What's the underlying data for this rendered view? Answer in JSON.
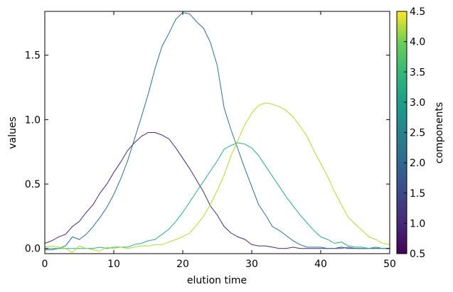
{
  "chart_data": {
    "type": "line",
    "xlabel": "elution time",
    "ylabel": "values",
    "xlim": [
      0,
      50
    ],
    "ylim": [
      -0.04,
      1.84
    ],
    "xticks": [
      0,
      10,
      20,
      30,
      40,
      50
    ],
    "xtick_labels": [
      "0",
      "10",
      "20",
      "30",
      "40",
      "50"
    ],
    "yticks": [
      0.0,
      0.5,
      1.0,
      1.5
    ],
    "ytick_labels": [
      "0.0",
      "0.5",
      "1.0",
      "1.5"
    ],
    "grid": false,
    "colorbar": {
      "label": "components",
      "range": [
        0.5,
        4.5
      ],
      "ticks": [
        0.5,
        1.0,
        1.5,
        2.0,
        2.5,
        3.0,
        3.5,
        4.0,
        4.5
      ],
      "tick_labels": [
        "0.5",
        "1.0",
        "1.5",
        "2.0",
        "2.5",
        "3.0",
        "3.5",
        "4.0",
        "4.5"
      ],
      "colormap": "viridis"
    },
    "x": [
      0,
      1,
      2,
      3,
      4,
      5,
      6,
      7,
      8,
      9,
      10,
      11,
      12,
      13,
      14,
      15,
      16,
      17,
      18,
      19,
      20,
      21,
      22,
      23,
      24,
      25,
      26,
      27,
      28,
      29,
      30,
      31,
      32,
      33,
      34,
      35,
      36,
      37,
      38,
      39,
      40,
      41,
      42,
      43,
      44,
      45,
      46,
      47,
      48,
      49,
      50
    ],
    "series": [
      {
        "component": 1,
        "color": "#482878",
        "values": [
          0.04,
          0.06,
          0.09,
          0.11,
          0.17,
          0.21,
          0.28,
          0.34,
          0.43,
          0.5,
          0.59,
          0.67,
          0.76,
          0.82,
          0.87,
          0.9,
          0.9,
          0.88,
          0.85,
          0.78,
          0.7,
          0.62,
          0.53,
          0.44,
          0.33,
          0.26,
          0.17,
          0.12,
          0.09,
          0.07,
          0.03,
          0.02,
          0.02,
          0.01,
          0.0,
          0.0,
          0.01,
          0.0,
          0.0,
          0.0,
          0.0,
          0.0,
          0.0,
          0.01,
          0.0,
          0.0,
          0.0,
          0.0,
          0.0,
          0.0,
          0.0
        ]
      },
      {
        "component": 2,
        "color": "#2c728e",
        "values": [
          -0.01,
          -0.01,
          0.0,
          0.02,
          0.09,
          0.07,
          0.11,
          0.17,
          0.24,
          0.32,
          0.42,
          0.54,
          0.68,
          0.85,
          1.02,
          1.2,
          1.4,
          1.57,
          1.67,
          1.78,
          1.83,
          1.82,
          1.76,
          1.71,
          1.6,
          1.42,
          1.09,
          0.92,
          0.77,
          0.62,
          0.48,
          0.34,
          0.26,
          0.17,
          0.14,
          0.1,
          0.06,
          0.03,
          0.01,
          0.01,
          0.01,
          0.0,
          0.0,
          0.0,
          0.01,
          0.0,
          0.0,
          0.0,
          0.01,
          0.0,
          0.0
        ]
      },
      {
        "component": 3,
        "color": "#27ad81",
        "values": [
          0.0,
          0.0,
          0.0,
          0.0,
          0.0,
          0.0,
          0.0,
          0.0,
          0.01,
          0.0,
          0.01,
          0.01,
          0.01,
          0.03,
          0.04,
          0.06,
          0.07,
          0.11,
          0.15,
          0.21,
          0.28,
          0.36,
          0.44,
          0.52,
          0.6,
          0.68,
          0.77,
          0.8,
          0.82,
          0.81,
          0.78,
          0.72,
          0.64,
          0.56,
          0.48,
          0.4,
          0.33,
          0.26,
          0.2,
          0.14,
          0.09,
          0.07,
          0.04,
          0.05,
          0.02,
          0.01,
          0.01,
          0.0,
          0.01,
          0.0,
          0.0
        ]
      },
      {
        "component": 4,
        "color": "#addc30",
        "values": [
          0.01,
          0.02,
          0.01,
          0.0,
          -0.03,
          0.02,
          0.0,
          -0.01,
          -0.02,
          0.01,
          0.0,
          0.01,
          0.0,
          0.01,
          0.02,
          0.02,
          0.03,
          0.03,
          0.05,
          0.07,
          0.09,
          0.12,
          0.18,
          0.25,
          0.34,
          0.45,
          0.57,
          0.72,
          0.84,
          0.96,
          1.05,
          1.11,
          1.13,
          1.12,
          1.1,
          1.07,
          1.02,
          0.95,
          0.87,
          0.76,
          0.66,
          0.56,
          0.44,
          0.34,
          0.24,
          0.19,
          0.14,
          0.09,
          0.07,
          0.04,
          0.03
        ]
      }
    ]
  }
}
